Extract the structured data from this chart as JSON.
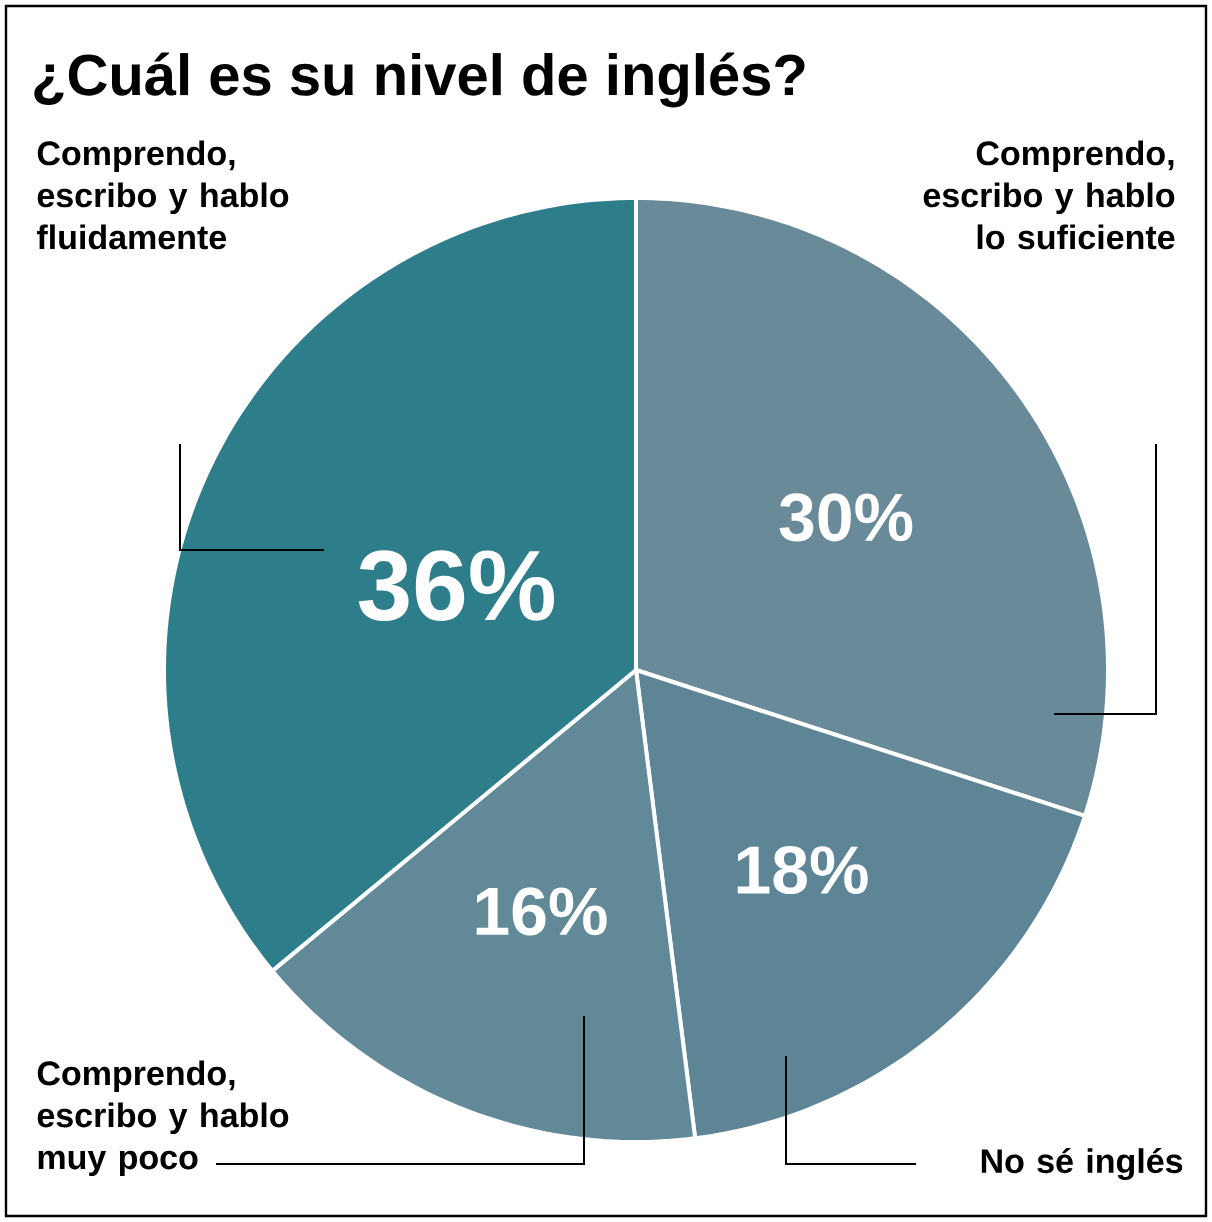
{
  "chart_data": {
    "type": "pie",
    "title": "¿Cuál es su nivel de inglés?",
    "categories": [
      "Comprendo, escribo y hablo lo suficiente",
      "No sé inglés",
      "Comprendo, escribo y hablo muy poco",
      "Comprendo, escribo y hablo fluidamente"
    ],
    "values": [
      30,
      18,
      16,
      36
    ],
    "value_labels": [
      "30%",
      "18%",
      "16%",
      "36%"
    ],
    "colors": [
      "#688a99",
      "#5d8596",
      "#618998",
      "#2e7d8b"
    ]
  }
}
